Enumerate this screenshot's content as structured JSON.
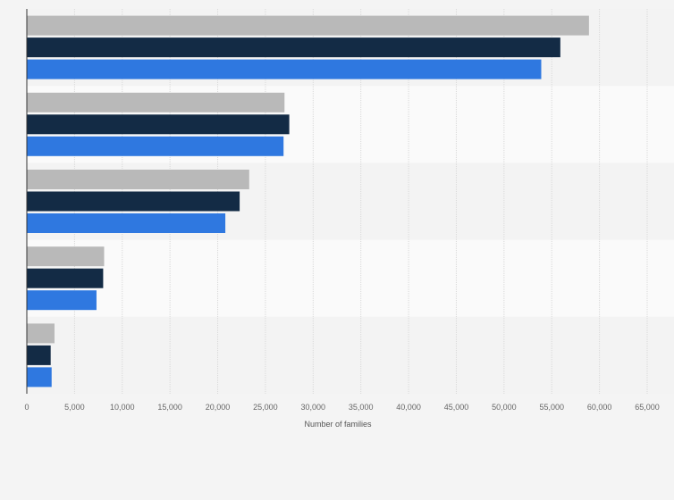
{
  "chart_data": {
    "type": "bar",
    "orientation": "horizontal",
    "title": "",
    "xlabel": "Number of families",
    "ylabel": "",
    "xlim": [
      0,
      65000
    ],
    "x_ticks": [
      0,
      5000,
      10000,
      15000,
      20000,
      25000,
      30000,
      35000,
      40000,
      45000,
      50000,
      55000,
      60000,
      65000
    ],
    "x_tick_labels": [
      "0",
      "5,000",
      "10,000",
      "15,000",
      "20,000",
      "25,000",
      "30,000",
      "35,000",
      "40,000",
      "45,000",
      "50,000",
      "55,000",
      "60,000",
      "65,000"
    ],
    "grid": true,
    "legend": "none",
    "categories": [
      "",
      "",
      "",
      "",
      ""
    ],
    "series": [
      {
        "color": "#b9b9b9",
        "values": [
          58900,
          27000,
          23300,
          8100,
          2900
        ]
      },
      {
        "color": "#132b45",
        "values": [
          55900,
          27500,
          22300,
          8000,
          2500
        ]
      },
      {
        "color": "#2f78e0",
        "values": [
          53900,
          26900,
          20800,
          7300,
          2600
        ]
      }
    ]
  }
}
